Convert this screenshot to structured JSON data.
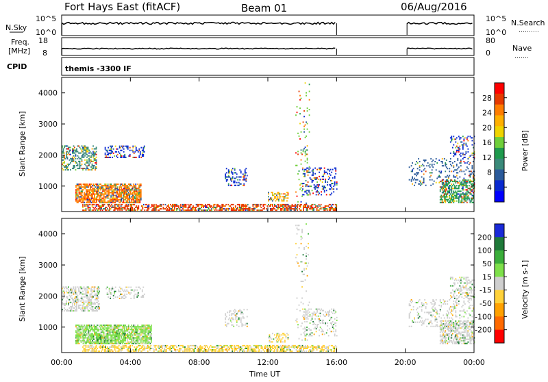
{
  "header": {
    "radar": "Fort Hays East (fitACF)",
    "beam": "Beam 01",
    "date": "06/Aug/2016"
  },
  "housekeeping": {
    "nsky_label": "N.Sky",
    "nsearch_label": "N.Search",
    "noise_top_tick": "10^5",
    "noise_bottom_tick": "10^0",
    "freq_label_1": "Freq.",
    "freq_label_2": "[MHz]",
    "freq_top_tick": "18",
    "freq_bottom_tick": "8",
    "nave_label": "Nave",
    "nave_top_tick": "80",
    "nave_bottom_tick": "0",
    "cpid_label": "CPID",
    "cpid_value": "themis -3300 IF"
  },
  "chart_data": [
    {
      "type": "heatmap",
      "name": "power",
      "ylabel": "Slant Range [km]",
      "xlabel": "",
      "colorbar_label": "Power [dB]",
      "colorbar_ticks": [
        "28",
        "24",
        "20",
        "16",
        "12",
        "8",
        "4"
      ],
      "colorbar_colors": [
        "#ff0000",
        "#e63a00",
        "#ff7d00",
        "#ffb000",
        "#f0d400",
        "#6fcf3a",
        "#1f9a4d",
        "#3a8a7a",
        "#2a5a9a",
        "#0a2ad0",
        "#0000ff"
      ],
      "yticks": [
        "1000",
        "2000",
        "3000",
        "4000"
      ],
      "ylim": [
        180,
        4500
      ],
      "xlim": [
        0,
        24
      ],
      "xticks": [
        "00:00",
        "04:00",
        "08:00",
        "12:00",
        "16:00",
        "20:00",
        "00:00"
      ],
      "gap_hours": [
        16,
        20.1
      ]
    },
    {
      "type": "heatmap",
      "name": "velocity",
      "ylabel": "Slant Range [km]",
      "xlabel": "Time UT",
      "colorbar_label": "Velocity [m s-1]",
      "colorbar_ticks": [
        "200",
        "100",
        "50",
        "15",
        "-15",
        "-50",
        "-100",
        "-200"
      ],
      "colorbar_colors": [
        "#1a2ad8",
        "#1f7a3a",
        "#3aae3a",
        "#7ee04a",
        "#cfcfcf",
        "#ffd23a",
        "#ffa100",
        "#ff6a00",
        "#ff0000"
      ],
      "yticks": [
        "1000",
        "2000",
        "3000",
        "4000"
      ],
      "ylim": [
        180,
        4500
      ],
      "xlim": [
        0,
        24
      ],
      "xticks": [
        "00:00",
        "04:00",
        "08:00",
        "12:00",
        "16:00",
        "20:00",
        "00:00"
      ],
      "gap_hours": [
        16,
        20.1
      ]
    }
  ]
}
